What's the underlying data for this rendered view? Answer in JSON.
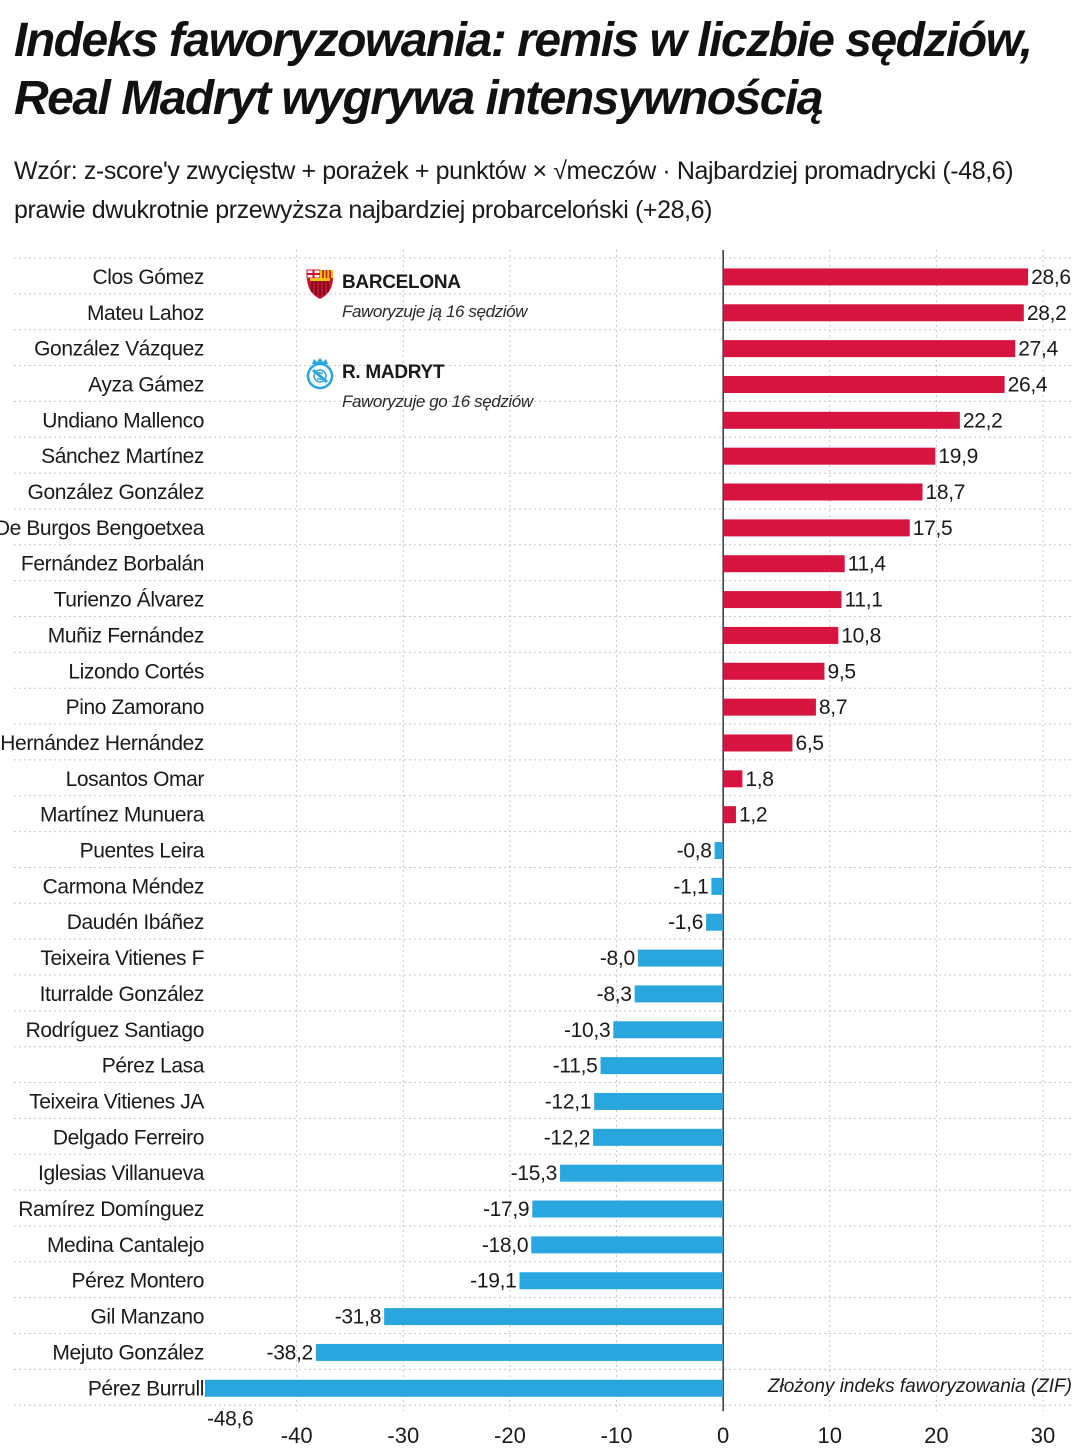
{
  "header": {
    "title": "Indeks faworyzowania: remis w liczbie sędziów, Real Madryt wygrywa intensywnością",
    "subtitle": "Wzór: z-score'y zwycięstw + porażek + punktów × √meczów · Najbardziej promadrycki (-48,6) prawie dwukrotnie przewyższa najbardziej probarceloński (+28,6)"
  },
  "legend": {
    "barcelona": {
      "label": "BARCELONA",
      "note": "Faworyzuje ją 16 sędziów",
      "icon": "fc-barcelona-crest-icon"
    },
    "madrid": {
      "label": "R. MADRYT",
      "note": "Faworyzuje go 16 sędziów",
      "icon": "real-madrid-crest-icon"
    }
  },
  "colors": {
    "barcelona": "#d7133f",
    "madrid": "#2aa6df",
    "grid": "#c8c8c8",
    "axis": "#333333"
  },
  "chart_data": {
    "type": "bar",
    "orientation": "horizontal",
    "categories": [
      "Clos Gómez",
      "Mateu Lahoz",
      "González Vázquez",
      "Ayza Gámez",
      "Undiano Mallenco",
      "Sánchez Martínez",
      "González González",
      "De Burgos Bengoetxea",
      "Fernández Borbalán",
      "Turienzo Álvarez",
      "Muñiz Fernández",
      "Lizondo Cortés",
      "Pino Zamorano",
      "Hernández Hernández",
      "Losantos Omar",
      "Martínez Munuera",
      "Puentes Leira",
      "Carmona Méndez",
      "Daudén Ibáñez",
      "Teixeira Vitienes F",
      "Iturralde González",
      "Rodríguez Santiago",
      "Pérez Lasa",
      "Teixeira Vitienes JA",
      "Delgado Ferreiro",
      "Iglesias Villanueva",
      "Ramírez Domínguez",
      "Medina Cantalejo",
      "Pérez Montero",
      "Gil Manzano",
      "Mejuto González",
      "Pérez Burrull"
    ],
    "values": [
      28.6,
      28.2,
      27.4,
      26.4,
      22.2,
      19.9,
      18.7,
      17.5,
      11.4,
      11.1,
      10.8,
      9.5,
      8.7,
      6.5,
      1.8,
      1.2,
      -0.8,
      -1.1,
      -1.6,
      -8.0,
      -8.3,
      -10.3,
      -11.5,
      -12.1,
      -12.2,
      -15.3,
      -17.9,
      -18.0,
      -19.1,
      -31.8,
      -38.2,
      -48.6
    ],
    "value_labels": [
      "28,6",
      "28,2",
      "27,4",
      "26,4",
      "22,2",
      "19,9",
      "18,7",
      "17,5",
      "11,4",
      "11,1",
      "10,8",
      "9,5",
      "8,7",
      "6,5",
      "1,8",
      "1,2",
      "-0,8",
      "-1,1",
      "-1,6",
      "-8,0",
      "-8,3",
      "-10,3",
      "-11,5",
      "-12,1",
      "-12,2",
      "-15,3",
      "-17,9",
      "-18,0",
      "-19,1",
      "-31,8",
      "-38,2",
      "-48,6"
    ],
    "xlim": [
      -48.6,
      31.5
    ],
    "xticks": [
      -40,
      -30,
      -20,
      -10,
      0,
      10,
      20,
      30
    ],
    "xtick_labels": [
      "-40",
      "-30",
      "-20",
      "-10",
      "0",
      "10",
      "20",
      "30"
    ],
    "xlabel": "Złożony indeks faworyzowania (ZIF)",
    "grid": true
  }
}
